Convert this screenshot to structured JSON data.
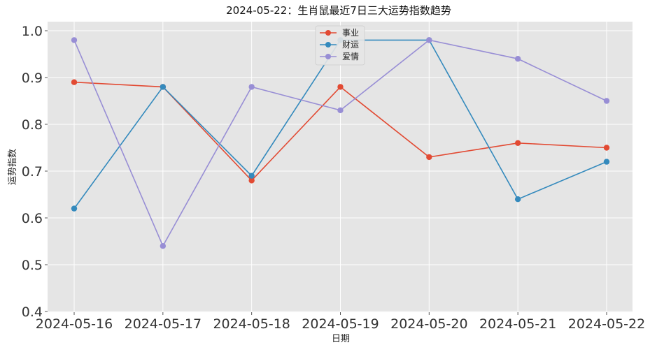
{
  "chart_data": {
    "type": "line",
    "title": "2024-05-22：生肖鼠最近7日三大运势指数趋势",
    "xlabel": "日期",
    "ylabel": "运势指数",
    "categories": [
      "2024-05-16",
      "2024-05-17",
      "2024-05-18",
      "2024-05-19",
      "2024-05-20",
      "2024-05-21",
      "2024-05-22"
    ],
    "ylim": [
      0.4,
      1.0
    ],
    "yticks": [
      "0.4",
      "0.5",
      "0.6",
      "0.7",
      "0.8",
      "0.9",
      "1.0"
    ],
    "grid": true,
    "legend_position": "top-center",
    "series": [
      {
        "name": "事业",
        "color": "#E24A33",
        "values": [
          0.89,
          0.88,
          0.68,
          0.88,
          0.73,
          0.76,
          0.75
        ]
      },
      {
        "name": "财运",
        "color": "#348ABD",
        "values": [
          0.62,
          0.88,
          0.69,
          0.98,
          0.98,
          0.64,
          0.72
        ]
      },
      {
        "name": "爱情",
        "color": "#988ED5",
        "values": [
          0.98,
          0.54,
          0.88,
          0.83,
          0.98,
          0.94,
          0.85
        ]
      }
    ]
  }
}
